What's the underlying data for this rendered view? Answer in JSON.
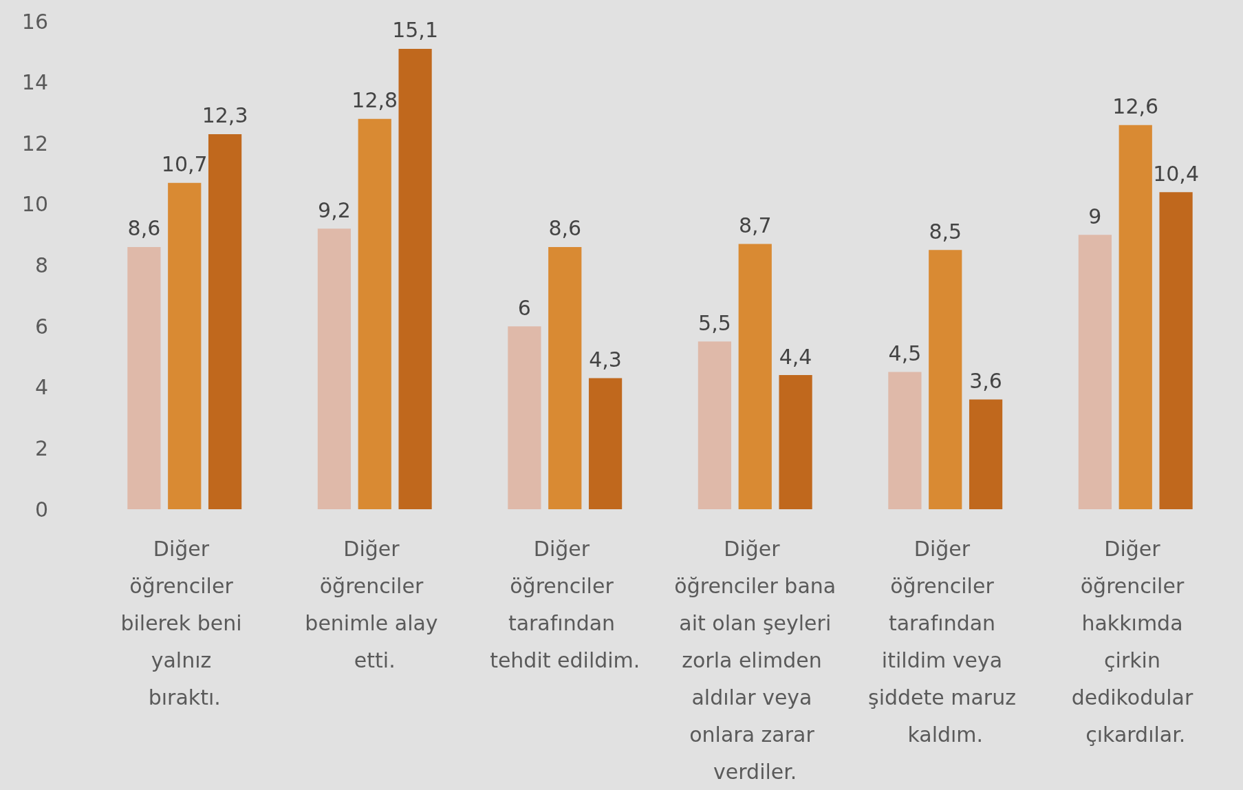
{
  "chart_data": {
    "type": "bar",
    "categories": [
      "Diğer öğrenciler bilerek beni yalnız bıraktı.",
      "Diğer öğrenciler benimle alay etti.",
      "Diğer öğrenciler tarafından tehdit edildim.",
      "Diğer öğrenciler bana ait olan şeyleri zorla elimden aldılar veya onlara zarar verdiler.",
      "Diğer öğrenciler tarafından itildim veya şiddete maruz kaldım.",
      "Diğer öğrenciler hakkımda çirkin dedikodular çıkardılar."
    ],
    "series": [
      {
        "color": "#dfb9a9",
        "values": [
          8.6,
          9.2,
          6,
          5.5,
          4.5,
          9
        ],
        "value_labels": [
          "8,6",
          "9,2",
          "6",
          "5,5",
          "4,5",
          "9"
        ]
      },
      {
        "color": "#d98a33",
        "values": [
          10.7,
          12.8,
          8.6,
          8.7,
          8.5,
          12.6
        ],
        "value_labels": [
          "10,7",
          "12,8",
          "8,6",
          "8,7",
          "8,5",
          "12,6"
        ]
      },
      {
        "color": "#c0681d",
        "values": [
          12.3,
          15.1,
          4.3,
          4.4,
          3.6,
          10.4
        ],
        "value_labels": [
          "12,3",
          "15,1",
          "4,3",
          "4,4",
          "3,6",
          "10,4"
        ]
      }
    ],
    "ylim": [
      0,
      16
    ],
    "yticks": [
      0,
      2,
      4,
      6,
      8,
      10,
      12,
      14,
      16
    ],
    "grid": false
  }
}
